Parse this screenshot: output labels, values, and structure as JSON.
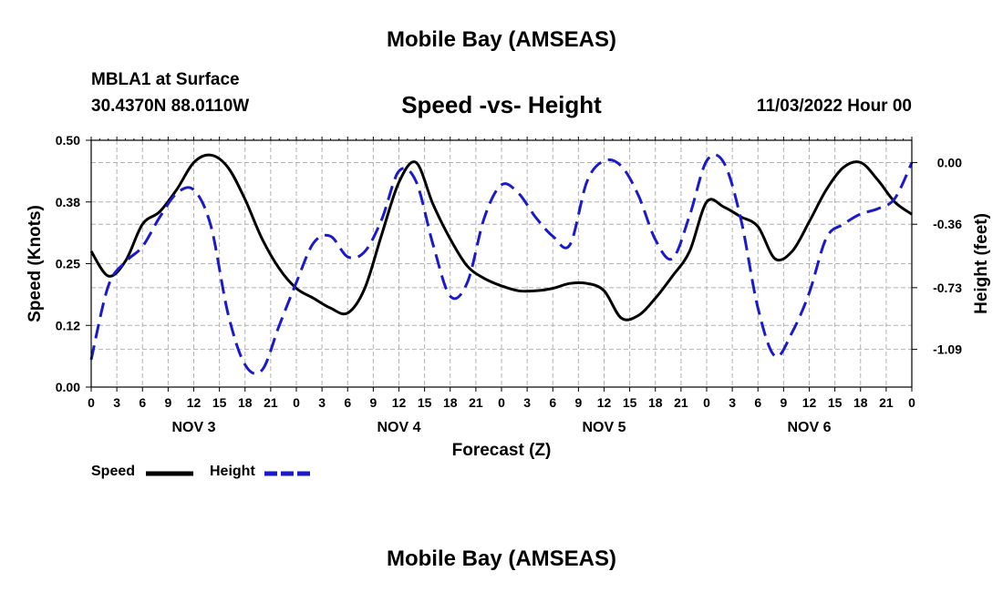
{
  "header": {
    "title_top": "Mobile Bay (AMSEAS)",
    "station": "MBLA1 at Surface",
    "coords": "30.4370N  88.0110W",
    "subtitle": "Speed -vs- Height",
    "datetime": "11/03/2022 Hour 00",
    "title_bottom": "Mobile Bay (AMSEAS)"
  },
  "legend": {
    "speed_label": "Speed",
    "height_label": "Height"
  },
  "colors": {
    "speed": "#000000",
    "height": "#1a1acc",
    "grid": "#b0b0b0"
  },
  "chart_data": {
    "type": "line",
    "xlabel": "Forecast (Z)",
    "ylabel": "Speed (Knots)",
    "y2label": "Height (feet)",
    "xlim": [
      0,
      96
    ],
    "ylim": [
      0,
      0.5
    ],
    "y2lim": [
      -1.31,
      0.13
    ],
    "yticks": [
      0.0,
      0.125,
      0.25,
      0.375,
      0.5
    ],
    "ytick_labels": [
      "0.00",
      "0.12",
      "0.25",
      "0.38",
      "0.50"
    ],
    "y2ticks": [
      0.0,
      -0.36,
      -0.73,
      -1.09
    ],
    "y2tick_labels": [
      "0.00",
      "-0.36",
      "-0.73",
      "-1.09"
    ],
    "xtick_labels": [
      "0",
      "3",
      "6",
      "9",
      "12",
      "15",
      "18",
      "21",
      "0",
      "3",
      "6",
      "9",
      "12",
      "15",
      "18",
      "21",
      "0",
      "3",
      "6",
      "9",
      "12",
      "15",
      "18",
      "21",
      "0",
      "3",
      "6",
      "9",
      "12",
      "15",
      "18",
      "21",
      "0"
    ],
    "day_labels": [
      {
        "label": "NOV 3",
        "x": 12
      },
      {
        "label": "NOV 4",
        "x": 36
      },
      {
        "label": "NOV 5",
        "x": 60
      },
      {
        "label": "NOV 6",
        "x": 84
      }
    ],
    "grid": true,
    "legend_position": "bottom-left",
    "series": [
      {
        "name": "Speed",
        "axis": "left",
        "x": [
          0,
          2,
          4,
          6,
          8,
          10,
          12,
          14,
          16,
          18,
          20,
          22,
          24,
          26,
          28,
          30,
          32,
          34,
          36,
          38,
          40,
          42,
          44,
          46,
          48,
          50,
          52,
          54,
          56,
          58,
          60,
          62,
          64,
          66,
          68,
          70,
          72,
          74,
          76,
          78,
          80,
          82,
          84,
          86,
          88,
          90,
          92,
          94,
          96
        ],
        "values": [
          0.275,
          0.225,
          0.255,
          0.33,
          0.355,
          0.4,
          0.455,
          0.47,
          0.445,
          0.38,
          0.3,
          0.24,
          0.2,
          0.18,
          0.16,
          0.15,
          0.2,
          0.31,
          0.415,
          0.455,
          0.37,
          0.3,
          0.245,
          0.22,
          0.205,
          0.195,
          0.195,
          0.2,
          0.21,
          0.21,
          0.195,
          0.14,
          0.145,
          0.18,
          0.225,
          0.275,
          0.375,
          0.365,
          0.345,
          0.325,
          0.26,
          0.275,
          0.335,
          0.4,
          0.445,
          0.455,
          0.42,
          0.375,
          0.35
        ]
      },
      {
        "name": "Height",
        "axis": "right",
        "x": [
          0,
          2,
          4,
          6,
          8,
          10,
          12,
          14,
          16,
          18,
          20,
          22,
          24,
          26,
          28,
          30,
          32,
          34,
          36,
          38,
          40,
          42,
          44,
          46,
          48,
          50,
          52,
          54,
          56,
          58,
          60,
          62,
          64,
          66,
          68,
          70,
          72,
          74,
          76,
          78,
          80,
          82,
          84,
          86,
          88,
          90,
          92,
          94,
          96
        ],
        "values": [
          -1.15,
          -0.72,
          -0.58,
          -0.49,
          -0.32,
          -0.18,
          -0.16,
          -0.37,
          -0.88,
          -1.18,
          -1.21,
          -0.95,
          -0.7,
          -0.47,
          -0.43,
          -0.55,
          -0.52,
          -0.33,
          -0.05,
          -0.11,
          -0.48,
          -0.78,
          -0.7,
          -0.32,
          -0.13,
          -0.18,
          -0.32,
          -0.43,
          -0.48,
          -0.11,
          0.01,
          -0.02,
          -0.19,
          -0.45,
          -0.56,
          -0.31,
          0.01,
          0.0,
          -0.33,
          -0.85,
          -1.13,
          -0.99,
          -0.76,
          -0.44,
          -0.36,
          -0.3,
          -0.27,
          -0.21,
          0.0
        ]
      }
    ]
  }
}
